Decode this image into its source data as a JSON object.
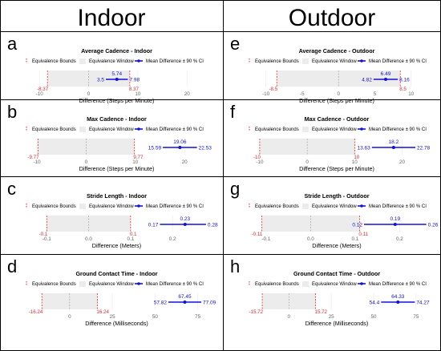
{
  "columns": [
    "Indoor",
    "Outdoor"
  ],
  "legend": {
    "bounds": "Equivalence Bounds",
    "window": "Equivalence Window",
    "mean": "Mean Difference ± 90 % CI"
  },
  "colors": {
    "bound": "#e8262c",
    "window": "#ececec",
    "mean": "#1111dd",
    "tick": "#666666",
    "grid": "#e8e8e8",
    "border": "#000000"
  },
  "chart_data": [
    {
      "panel": "a",
      "type": "equivalence_interval",
      "title": "Average Cadence - Indoor",
      "xlabel": "Difference (Steps per Minute)",
      "xticks": [
        -10,
        0,
        10,
        20
      ],
      "xlim": [
        -11.5,
        26
      ],
      "bounds": [
        -8.37,
        8.37
      ],
      "bound_labels": [
        "-8.37",
        "8.37"
      ],
      "mean": 5.74,
      "ci": [
        3.5,
        7.98
      ],
      "mean_label": "5.74",
      "ci_labels": [
        "3.5",
        "7.98"
      ]
    },
    {
      "panel": "e",
      "type": "equivalence_interval",
      "title": "Average Cadence - Outdoor",
      "xlabel": "Difference (Steps per Minute)",
      "xticks": [
        -10,
        -5,
        0,
        5,
        10
      ],
      "xlim": [
        -11.5,
        13
      ],
      "bounds": [
        -8.5,
        8.5
      ],
      "bound_labels": [
        "-8.5",
        "8.5"
      ],
      "mean": 6.49,
      "ci": [
        4.82,
        8.16
      ],
      "mean_label": "6.49",
      "ci_labels": [
        "4.82",
        "8.16"
      ]
    },
    {
      "panel": "b",
      "type": "equivalence_interval",
      "title": "Max Cadence - Indoor",
      "xlabel": "Difference (Steps per Minute)",
      "xticks": [
        -10,
        0,
        10,
        20
      ],
      "xlim": [
        -11,
        26.5
      ],
      "bounds": [
        -9.77,
        9.77
      ],
      "bound_labels": [
        "-9.77",
        "9.77"
      ],
      "mean": 19.06,
      "ci": [
        15.59,
        22.53
      ],
      "mean_label": "19.06",
      "ci_labels": [
        "15.59",
        "22.53"
      ]
    },
    {
      "panel": "f",
      "type": "equivalence_interval",
      "title": "Max Cadence - Outdoor",
      "xlabel": "Difference (Steps per Minute)",
      "xticks": [
        -10,
        0,
        10,
        20
      ],
      "xlim": [
        -11,
        26.5
      ],
      "bounds": [
        -10,
        10
      ],
      "bound_labels": [
        "-10",
        "10"
      ],
      "mean": 18.2,
      "ci": [
        13.63,
        22.78
      ],
      "mean_label": "18.2",
      "ci_labels": [
        "13.63",
        "22.78"
      ]
    },
    {
      "panel": "c",
      "type": "equivalence_interval",
      "title": "Stride Length - Indoor",
      "xlabel": "Difference (Meters)",
      "xticks": [
        -0.1,
        0.0,
        0.1,
        0.2
      ],
      "xtick_labels": [
        "-0.1",
        "0.0",
        "0.1",
        "0.2"
      ],
      "xlim": [
        -0.135,
        0.305
      ],
      "bounds": [
        -0.1,
        0.1
      ],
      "bound_labels": [
        "-0.1",
        "0.1"
      ],
      "mean": 0.23,
      "ci": [
        0.17,
        0.28
      ],
      "mean_label": "0.23",
      "ci_labels": [
        "0.17",
        "0.28"
      ]
    },
    {
      "panel": "g",
      "type": "equivalence_interval",
      "title": "Stride Length - Outdoor",
      "xlabel": "Difference (Meters)",
      "xticks": [
        -0.1,
        0.0,
        0.1,
        0.2
      ],
      "xtick_labels": [
        "-0.1",
        "0.0",
        "0.1",
        "0.2"
      ],
      "xlim": [
        -0.125,
        0.275
      ],
      "bounds": [
        -0.11,
        0.11
      ],
      "bound_labels": [
        "-0.11",
        "0.11"
      ],
      "mean": 0.19,
      "ci": [
        0.12,
        0.26
      ],
      "mean_label": "0.19",
      "ci_labels": [
        "0.12",
        "0.26"
      ]
    },
    {
      "panel": "d",
      "type": "equivalence_interval",
      "title": "Ground Contact Time - Indoor",
      "xlabel": "Difference (Milliseconds)",
      "xticks": [
        0,
        25,
        50,
        75
      ],
      "xlim": [
        -22,
        86
      ],
      "bounds": [
        -16.24,
        16.24
      ],
      "bound_labels": [
        "-16.24",
        "16.24"
      ],
      "mean": 67.45,
      "ci": [
        57.82,
        77.09
      ],
      "mean_label": "67.45",
      "ci_labels": [
        "57.82",
        "77.09"
      ]
    },
    {
      "panel": "h",
      "type": "equivalence_interval",
      "title": "Ground Contact Time - Outdoor",
      "xlabel": "Difference (Milliseconds)",
      "xticks": [
        0,
        25,
        50,
        75
      ],
      "xlim": [
        -20,
        85
      ],
      "bounds": [
        -15.72,
        15.72
      ],
      "bound_labels": [
        "-15.72",
        "15.72"
      ],
      "mean": 64.33,
      "ci": [
        54.4,
        74.27
      ],
      "mean_label": "64.33",
      "ci_labels": [
        "54.4",
        "74.27"
      ]
    }
  ]
}
